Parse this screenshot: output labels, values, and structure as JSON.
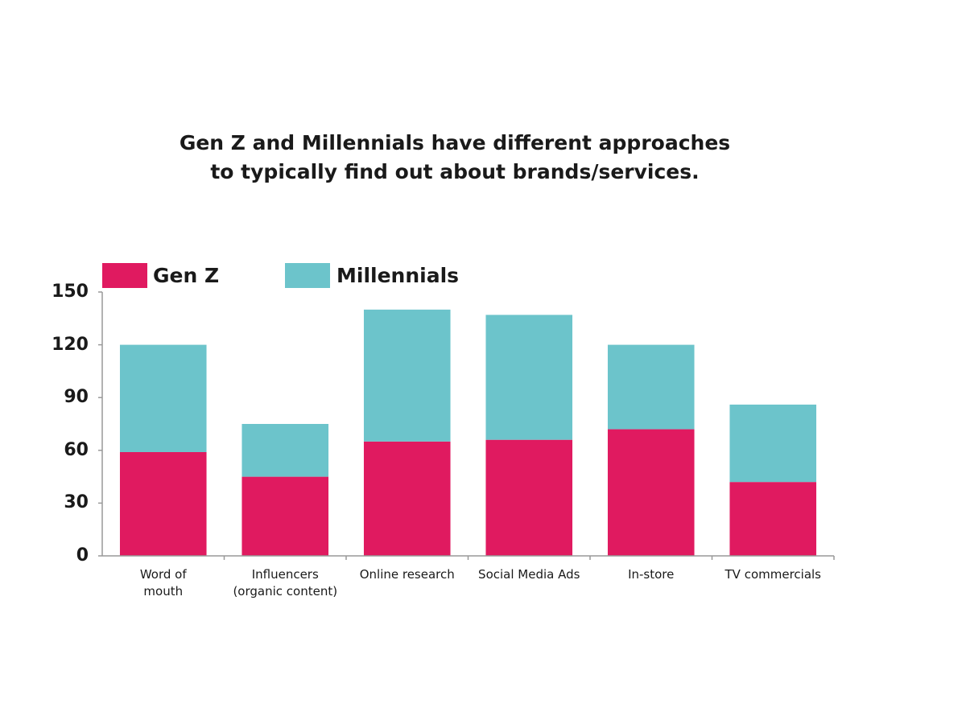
{
  "chart_data": {
    "type": "stacked_bar",
    "title": "Gen Z and Millennials have different approaches\nto typically find out about brands/services.",
    "categories": [
      "Word of\nmouth",
      "Influencers\n(organic content)",
      "Online research",
      "Social Media Ads",
      "In-store",
      "TV commercials"
    ],
    "series": [
      {
        "name": "Gen Z",
        "color": "#e01a60",
        "values": [
          59,
          45,
          65,
          66,
          72,
          42
        ]
      },
      {
        "name": "Millennials",
        "color": "#6cc4cb",
        "values": [
          61,
          30,
          75,
          71,
          48,
          44
        ]
      }
    ],
    "ylim": [
      0,
      150
    ],
    "yticks": [
      0,
      30,
      60,
      90,
      120,
      150
    ],
    "grid": false
  }
}
